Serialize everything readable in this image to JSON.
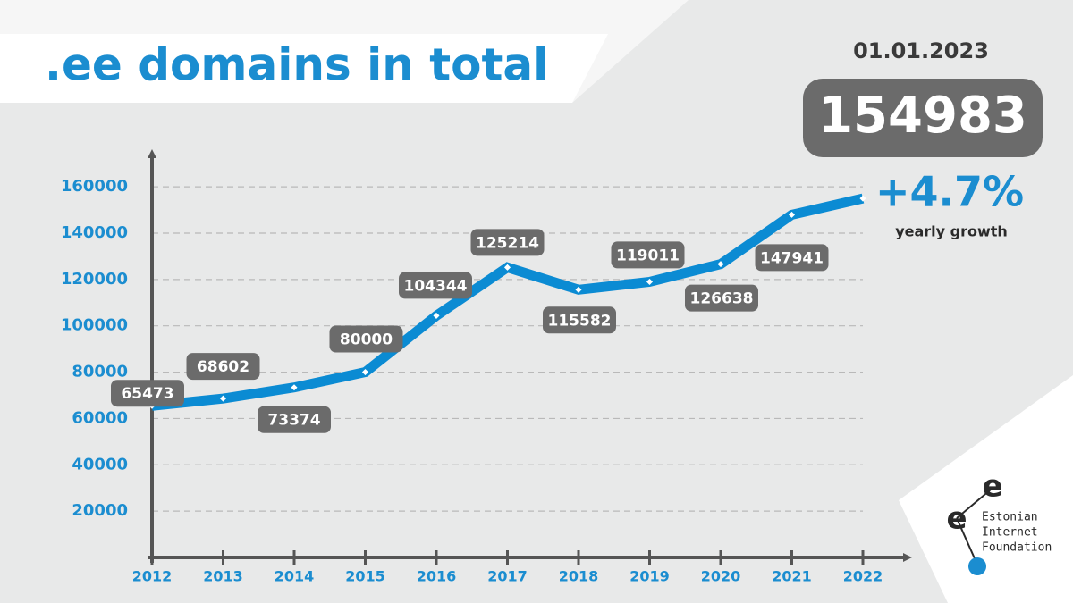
{
  "chart_data": {
    "type": "line",
    "title": ".ee domains in total",
    "categories": [
      "2012",
      "2013",
      "2014",
      "2015",
      "2016",
      "2017",
      "2018",
      "2019",
      "2020",
      "2021",
      "2022"
    ],
    "values": [
      65473,
      68602,
      73374,
      80000,
      104344,
      125214,
      115582,
      119011,
      126638,
      147941,
      154983
    ],
    "color": "#0b8bd3",
    "ylim": [
      0,
      170000
    ],
    "yticks": [
      20000,
      40000,
      60000,
      80000,
      100000,
      120000,
      140000,
      160000
    ],
    "grid": true,
    "highlight": {
      "date": "01.01.2023",
      "growth": "+4.7%",
      "growth_label": "yearly growth"
    },
    "logo": {
      "mark": [
        "e",
        "e"
      ],
      "lines": [
        "Estonian",
        "Internet",
        "Foundation"
      ]
    }
  }
}
